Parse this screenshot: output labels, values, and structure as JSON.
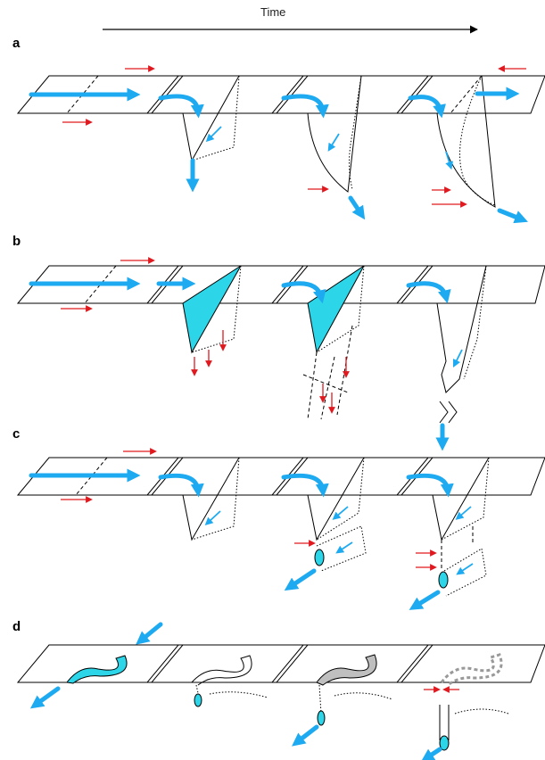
{
  "figure": {
    "time_label": "Time",
    "panels": [
      {
        "label": "a"
      },
      {
        "label": "b"
      },
      {
        "label": "c"
      },
      {
        "label": "d"
      }
    ]
  },
  "colors": {
    "flow_arrow": "#1eaaf0",
    "stress_arrow": "#e0191f",
    "fill_cyan": "#2cd6e8",
    "outline": "#000000"
  }
}
